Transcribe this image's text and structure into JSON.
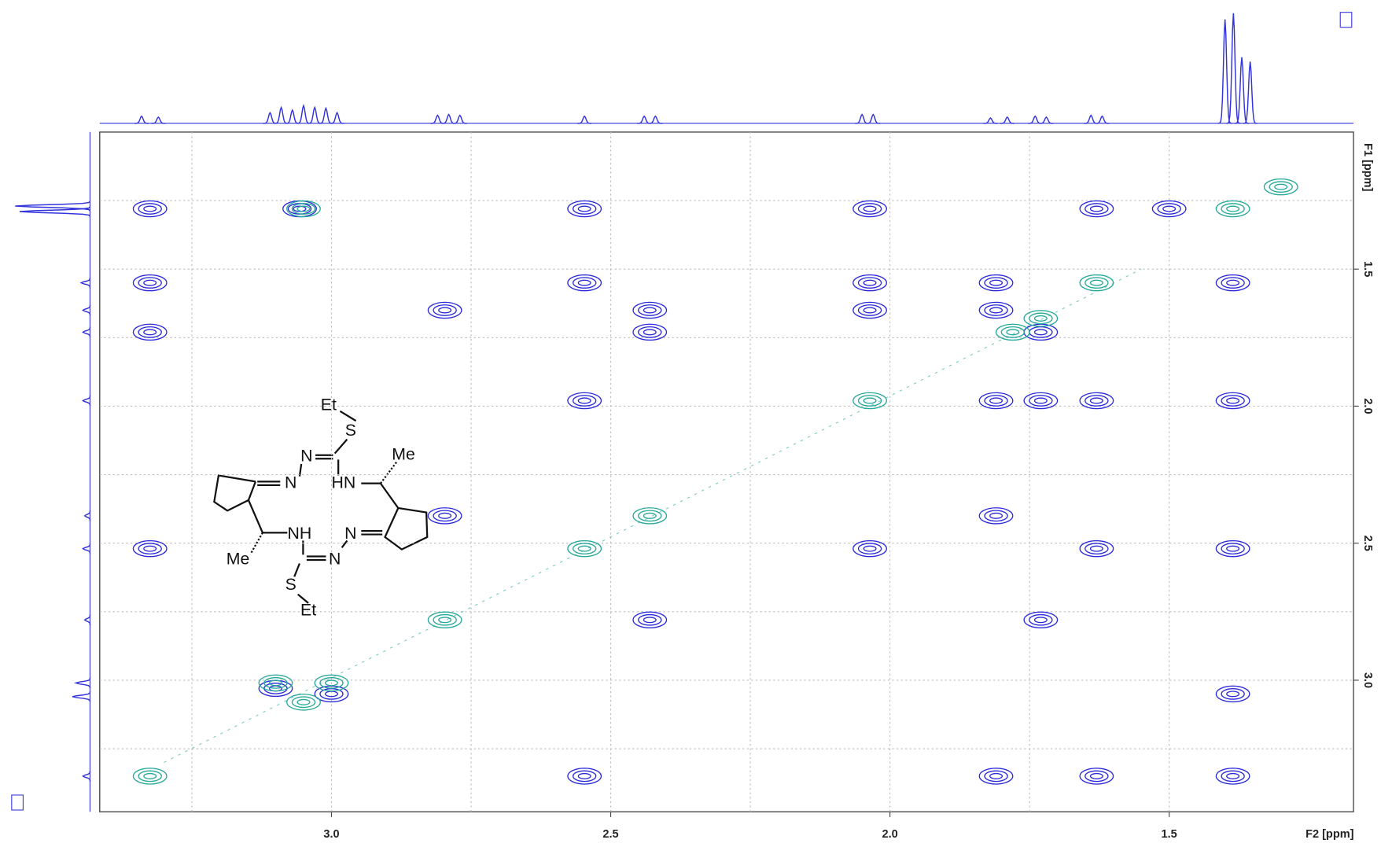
{
  "chart_data": {
    "type": "nmr2d",
    "xlabel": "F2 [ppm]",
    "ylabel": "F1 [ppm]",
    "xlim": [
      3.415,
      1.17
    ],
    "ylim": [
      1.0,
      3.48
    ],
    "xticks": [
      {
        "value": 3,
        "label": "3.0"
      },
      {
        "value": 2.5,
        "label": "2.5"
      },
      {
        "value": 2,
        "label": "2.0"
      },
      {
        "value": 1.5,
        "label": "1.5"
      }
    ],
    "yticks": [
      {
        "value": 1.5,
        "label": "1.5"
      },
      {
        "value": 2,
        "label": "2.0"
      },
      {
        "value": 2.5,
        "label": "2.5"
      },
      {
        "value": 3,
        "label": "3.0"
      }
    ],
    "xminor": [
      3.25,
      2.75,
      2.25,
      1.75
    ],
    "yminor": [
      1.25,
      1.75,
      2.25,
      2.75,
      3.25
    ],
    "grid": true,
    "series": [
      {
        "color": "#2a2ad8",
        "x": [
          3.325,
          3.325,
          3.325,
          3.325,
          3.057,
          2.547,
          2.547,
          2.547,
          2.547,
          2.797,
          2.797,
          2.43,
          2.43,
          2.43,
          2.036,
          2.036,
          2.036,
          2.036,
          1.81,
          1.81,
          1.81,
          1.81,
          1.81,
          1.73,
          1.73,
          1.73,
          1.63,
          1.63,
          1.63,
          1.63,
          1.386,
          1.386,
          1.386,
          1.386,
          1.386,
          3.1,
          3.0,
          1.5
        ],
        "y": [
          1.28,
          1.55,
          1.73,
          2.52,
          1.28,
          1.28,
          1.55,
          1.98,
          3.35,
          1.65,
          2.4,
          1.65,
          1.73,
          2.78,
          1.28,
          1.55,
          1.65,
          2.52,
          1.55,
          1.65,
          2.4,
          1.98,
          3.35,
          1.73,
          1.98,
          2.78,
          1.28,
          1.98,
          2.52,
          3.35,
          1.55,
          1.98,
          2.52,
          3.05,
          3.35,
          3.03,
          3.05,
          1.28
        ]
      },
      {
        "color": "#27a89a",
        "x": [
          3.325,
          3.1,
          3.0,
          3.05,
          2.797,
          2.547,
          2.43,
          2.036,
          1.78,
          1.73,
          1.63,
          1.386,
          1.3,
          3.05
        ],
        "y": [
          3.35,
          3.01,
          3.01,
          3.08,
          2.78,
          2.52,
          2.4,
          1.98,
          1.73,
          1.68,
          1.55,
          1.28,
          1.2,
          1.28
        ]
      }
    ],
    "top_projection": {
      "x": [
        3.34,
        3.31,
        3.11,
        3.09,
        3.07,
        3.05,
        3.03,
        3.01,
        2.99,
        2.81,
        2.79,
        2.77,
        2.547,
        2.44,
        2.42,
        2.05,
        2.03,
        1.82,
        1.79,
        1.74,
        1.72,
        1.64,
        1.62,
        1.4,
        1.385,
        1.37,
        1.355
      ],
      "values": [
        8,
        7,
        12,
        18,
        15,
        20,
        18,
        17,
        12,
        9,
        10,
        9,
        8,
        8,
        8,
        10,
        10,
        6,
        7,
        8,
        7,
        9,
        8,
        118,
        125,
        75,
        70
      ]
    },
    "left_projection": {
      "y": [
        1.27,
        1.29,
        1.55,
        1.65,
        1.73,
        1.98,
        2.4,
        2.52,
        2.78,
        3.01,
        3.06,
        3.35
      ],
      "values": [
        85,
        80,
        10,
        8,
        8,
        8,
        6,
        8,
        6,
        16,
        20,
        8
      ]
    },
    "structure_labels": [
      "Et",
      "S",
      "N",
      "Me",
      "N",
      "HN",
      "NH",
      "N",
      "Me",
      "N",
      "S",
      "Et"
    ]
  }
}
